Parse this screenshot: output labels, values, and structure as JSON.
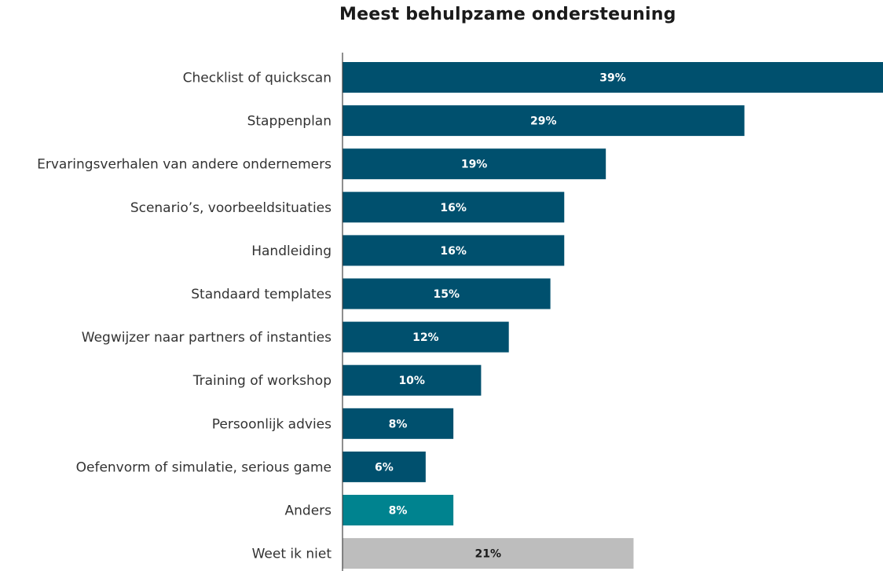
{
  "chart_data": {
    "type": "bar",
    "orientation": "horizontal",
    "title": "Meest behulpzame ondersteuning",
    "xlabel": "",
    "ylabel": "",
    "unit": "%",
    "xlim": [
      0,
      39
    ],
    "grid": false,
    "legend": "none",
    "categories": [
      "Checklist of quickscan",
      "Stappenplan",
      "Ervaringsverhalen van andere ondernemers",
      "Scenario’s, voorbeeldsituaties",
      "Handleiding",
      "Standaard templates",
      "Wegwijzer naar partners of instanties",
      "Training of workshop",
      "Persoonlijk advies",
      "Oefenvorm of simulatie, serious game",
      "Anders",
      "Weet ik niet"
    ],
    "values": [
      39,
      29,
      19,
      16,
      16,
      15,
      12,
      10,
      8,
      6,
      8,
      21
    ],
    "labels": [
      "39%",
      "29%",
      "19%",
      "16%",
      "16%",
      "15%",
      "12%",
      "10%",
      "8%",
      "6%",
      "8%",
      "21%"
    ],
    "colors": [
      "#00506e",
      "#00506e",
      "#00506e",
      "#00506e",
      "#00506e",
      "#00506e",
      "#00506e",
      "#00506e",
      "#00506e",
      "#00506e",
      "#00838f",
      "#bdbdbd"
    ],
    "label_colors": [
      "#ffffff",
      "#ffffff",
      "#ffffff",
      "#ffffff",
      "#ffffff",
      "#ffffff",
      "#ffffff",
      "#ffffff",
      "#ffffff",
      "#ffffff",
      "#ffffff",
      "#1a1a1a"
    ]
  }
}
